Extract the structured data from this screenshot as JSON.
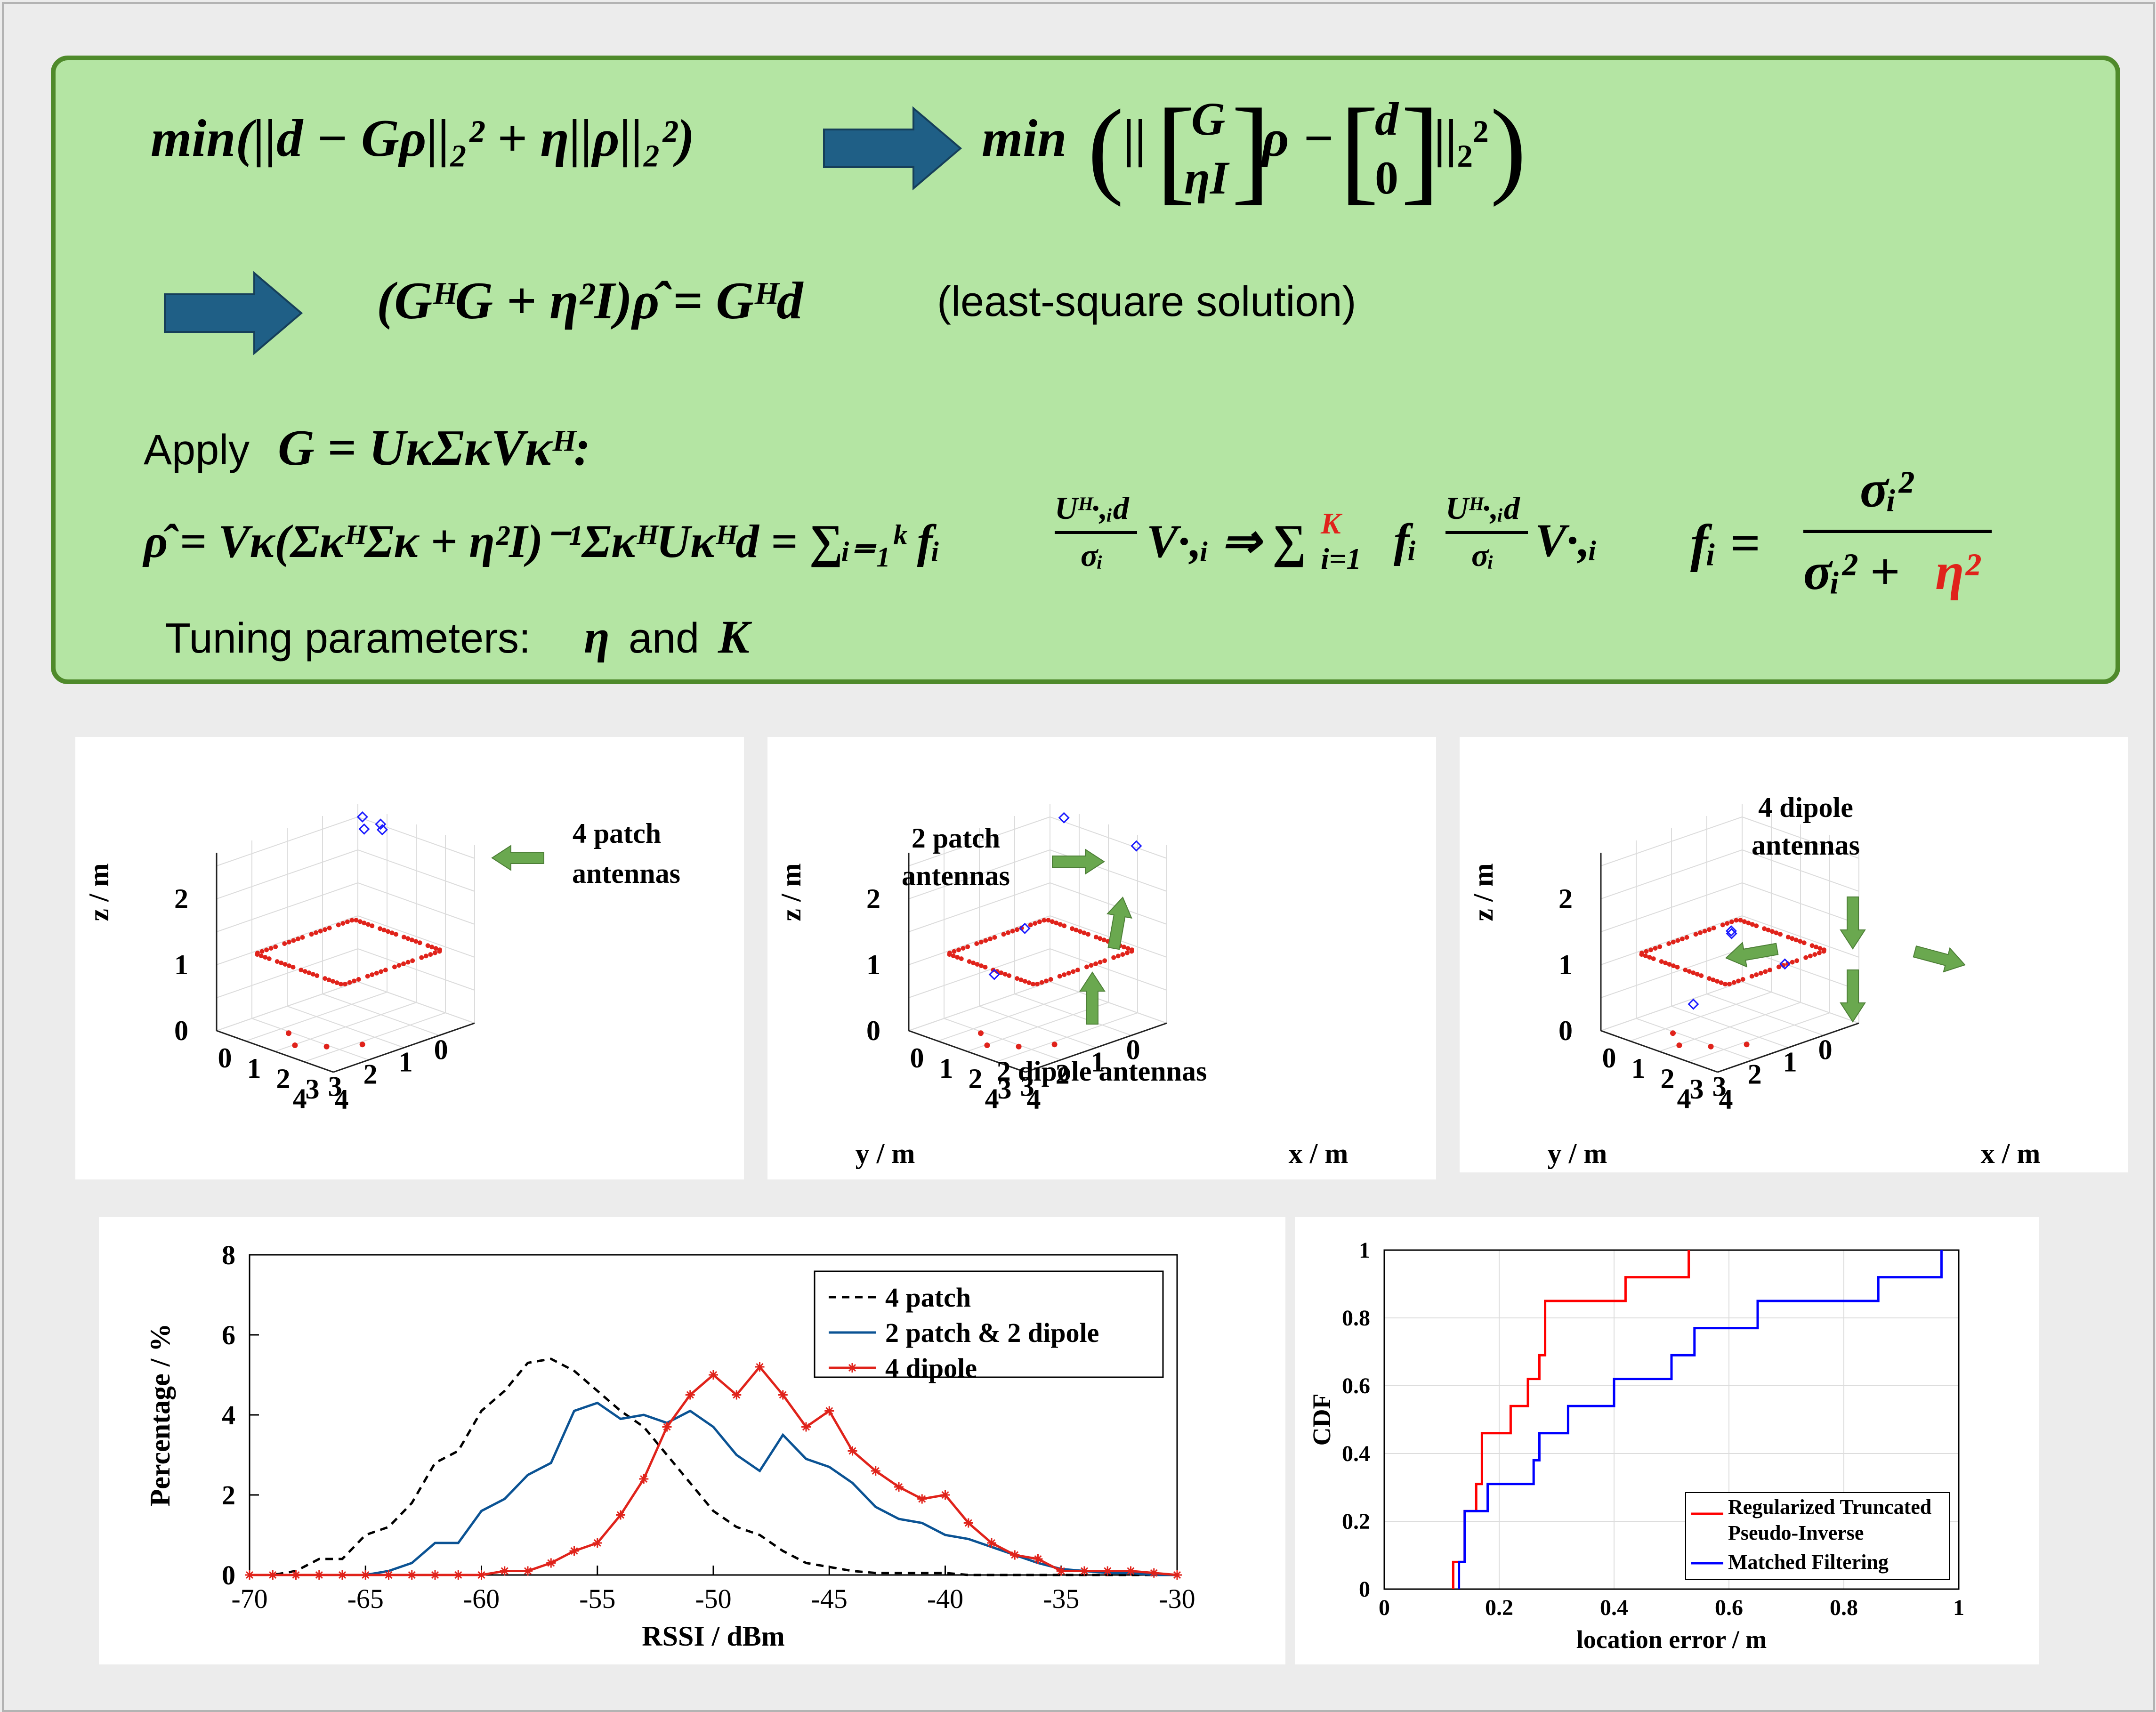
{
  "equations": {
    "eq1_left": "min(||d − Gρ||₂² + η||ρ||₂²)",
    "eq1_min": "min",
    "eq1_G": "G",
    "eq1_etaI": "ηI",
    "eq1_rho": "ρ −",
    "eq1_d": "d",
    "eq1_zero": "0",
    "eq1_norm": "||₂²",
    "eq2": "(GᴴG + η²I)ρ̂ = Gᴴd",
    "eq2_note": "(least-square solution)",
    "apply_prefix": "Apply",
    "apply_math": "G = UκΣκVκᴴ:",
    "eq3": "ρ̂ = Vκ(ΣκᴴΣκ + η²I)⁻¹ΣκᴴUκᴴd = ∑ᵢ₌₁ᵏ fᵢ",
    "eq3_frac_num": "Uᴴ·,ᵢd",
    "eq3_frac_den": "σᵢ",
    "eq3_tail": "V·,ᵢ ⇒ ∑",
    "eq3_K": "K",
    "eq3_sub": "i=1",
    "eq3_fi": "fᵢ",
    "eq3_tail2": "V·,ᵢ",
    "fi_left": "fᵢ =",
    "fi_num": "σᵢ²",
    "fi_den_a": "σᵢ² +",
    "fi_den_eta": "η²",
    "tuning_prefix": "Tuning parameters:",
    "tuning_eta": "η",
    "tuning_and": "and",
    "tuning_K": "K"
  },
  "scenes": [
    {
      "annotation": [
        "4 patch",
        "antennas"
      ],
      "zlabel": "z / m",
      "ylabel": "",
      "xlabel": ""
    },
    {
      "annotation": [
        "2 patch",
        "antennas"
      ],
      "annotation2": "2 dipole antennas",
      "zlabel": "z / m",
      "ylabel": "y / m",
      "xlabel": "x / m"
    },
    {
      "annotation": [
        "4 dipole",
        "antennas"
      ],
      "zlabel": "z / m",
      "ylabel": "y / m",
      "xlabel": "x / m"
    }
  ],
  "scene_ticks": {
    "z": [
      "0",
      "1",
      "2"
    ],
    "y": [
      "4",
      "3",
      "2",
      "1",
      "0"
    ],
    "x": [
      "0",
      "1",
      "2",
      "3",
      "4"
    ]
  },
  "colors": {
    "marker_red": "#e0231b",
    "antenna_blue": "#1a1aff",
    "arrow_green": "#6aa84f",
    "box_green": "#b4e5a3",
    "box_border": "#4f8a2b",
    "big_arrow": "#1f5f86"
  },
  "chart_data": [
    {
      "type": "line",
      "xlabel": "RSSI / dBm",
      "ylabel": "Percentage / %",
      "xlim": [
        -70,
        -30
      ],
      "ylim": [
        0,
        8
      ],
      "xticks": [
        "-70",
        "-65",
        "-60",
        "-55",
        "-50",
        "-45",
        "-40",
        "-35",
        "-30"
      ],
      "yticks": [
        "0",
        "2",
        "4",
        "6",
        "8"
      ],
      "legend_position": "top-right",
      "x": [
        -70,
        -69,
        -68,
        -67,
        -66,
        -65,
        -64,
        -63,
        -62,
        -61,
        -60,
        -59,
        -58,
        -57,
        -56,
        -55,
        -54,
        -53,
        -52,
        -51,
        -50,
        -49,
        -48,
        -47,
        -46,
        -45,
        -44,
        -43,
        -42,
        -41,
        -40,
        -39,
        -38,
        -37,
        -36,
        -35,
        -34,
        -33,
        -32,
        -31,
        -30
      ],
      "series": [
        {
          "name": "4 patch",
          "style": "dashed",
          "color": "#000000",
          "values": [
            0,
            0,
            0.1,
            0.4,
            0.4,
            1.0,
            1.2,
            1.8,
            2.8,
            3.1,
            4.1,
            4.6,
            5.3,
            5.4,
            5.1,
            4.6,
            4.1,
            3.7,
            3.0,
            2.3,
            1.6,
            1.2,
            1.0,
            0.6,
            0.3,
            0.2,
            0.1,
            0.05,
            0.05,
            0.05,
            0.05,
            0,
            0,
            0,
            0,
            0,
            0,
            0,
            0,
            0,
            0
          ]
        },
        {
          "name": "2 patch & 2 dipole",
          "style": "solid",
          "color": "#0b5394",
          "values": [
            0,
            0,
            0,
            0,
            0,
            0,
            0.1,
            0.3,
            0.8,
            0.8,
            1.6,
            1.9,
            2.5,
            2.8,
            4.1,
            4.3,
            3.9,
            4.0,
            3.8,
            4.1,
            3.7,
            3.0,
            2.6,
            3.5,
            2.9,
            2.7,
            2.3,
            1.7,
            1.4,
            1.3,
            1.0,
            0.9,
            0.7,
            0.5,
            0.3,
            0.15,
            0.1,
            0.05,
            0.05,
            0,
            0
          ]
        },
        {
          "name": "4 dipole",
          "style": "solid-star",
          "color": "#e0231b",
          "values": [
            0,
            0,
            0,
            0,
            0,
            0,
            0,
            0,
            0,
            0,
            0,
            0.1,
            0.1,
            0.3,
            0.6,
            0.8,
            1.5,
            2.4,
            3.7,
            4.5,
            5.0,
            4.5,
            5.2,
            4.5,
            3.7,
            4.1,
            3.1,
            2.6,
            2.2,
            1.9,
            2.0,
            1.3,
            0.8,
            0.5,
            0.4,
            0.1,
            0.1,
            0.1,
            0.1,
            0.05,
            0
          ]
        }
      ]
    },
    {
      "type": "line",
      "xlabel": "location error / m",
      "ylabel": "CDF",
      "xlim": [
        0,
        1
      ],
      "ylim": [
        0,
        1
      ],
      "xticks": [
        "0",
        "0.2",
        "0.4",
        "0.6",
        "0.8",
        "1"
      ],
      "yticks": [
        "0",
        "0.2",
        "0.4",
        "0.6",
        "0.8",
        "1"
      ],
      "grid": true,
      "legend_position": "bottom-right",
      "series": [
        {
          "name": "Regularized Truncated Pseudo-Inverse",
          "color": "#ff0000",
          "x": [
            0.12,
            0.12,
            0.14,
            0.14,
            0.16,
            0.16,
            0.17,
            0.17,
            0.22,
            0.22,
            0.25,
            0.25,
            0.27,
            0.27,
            0.28,
            0.28,
            0.36,
            0.36,
            0.42,
            0.42,
            0.53,
            0.53
          ],
          "y": [
            0,
            0.08,
            0.08,
            0.23,
            0.23,
            0.31,
            0.31,
            0.46,
            0.46,
            0.54,
            0.54,
            0.62,
            0.62,
            0.69,
            0.69,
            0.85,
            0.85,
            0.85,
            0.85,
            0.92,
            0.92,
            1.0
          ]
        },
        {
          "name": "Matched Filtering",
          "color": "#0000ff",
          "x": [
            0.13,
            0.13,
            0.14,
            0.14,
            0.18,
            0.18,
            0.26,
            0.26,
            0.27,
            0.27,
            0.32,
            0.32,
            0.4,
            0.4,
            0.5,
            0.5,
            0.54,
            0.54,
            0.65,
            0.65,
            0.86,
            0.86,
            0.97,
            0.97
          ],
          "y": [
            0,
            0.08,
            0.08,
            0.23,
            0.23,
            0.31,
            0.31,
            0.38,
            0.38,
            0.46,
            0.46,
            0.54,
            0.54,
            0.62,
            0.62,
            0.69,
            0.69,
            0.77,
            0.77,
            0.85,
            0.85,
            0.92,
            0.92,
            1.0
          ]
        }
      ]
    }
  ]
}
